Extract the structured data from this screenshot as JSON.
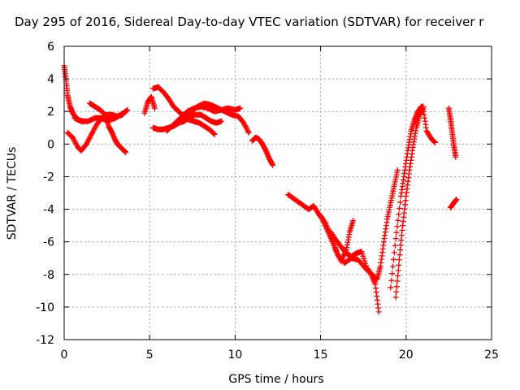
{
  "chart_data": {
    "type": "scatter",
    "title": "Day 295 of 2016, Sidereal Day-to-day VTEC variation (SDTVAR) for receiver r",
    "xlabel": "GPS time / hours",
    "ylabel": "SDTVAR / TECUs",
    "xlim": [
      0,
      25
    ],
    "ylim": [
      -12,
      6
    ],
    "xticks": [
      "0",
      "5",
      "10",
      "15",
      "20",
      "25"
    ],
    "yticks": [
      "-12",
      "-10",
      "-8",
      "-6",
      "-4",
      "-2",
      "0",
      "2",
      "4",
      "6"
    ],
    "grid": true,
    "legend": "none",
    "marker": "+",
    "color": "#ff0000",
    "series": [
      {
        "x": [
          0.0,
          0.1,
          0.2,
          0.35,
          0.5,
          0.7,
          0.9,
          1.1
        ],
        "y": [
          4.8,
          4.0,
          3.0,
          2.3,
          1.9,
          1.6,
          1.45,
          1.4
        ]
      },
      {
        "x": [
          0.2,
          0.5,
          0.8,
          1.0,
          1.3,
          1.6,
          1.9,
          2.2,
          2.5,
          2.8,
          3.1,
          3.4,
          3.7
        ],
        "y": [
          0.7,
          0.4,
          -0.2,
          -0.4,
          0.0,
          0.6,
          1.2,
          1.6,
          1.8,
          1.8,
          1.7,
          1.8,
          2.1
        ]
      },
      {
        "x": [
          0.6,
          1.0,
          1.4,
          1.8,
          2.1,
          2.4,
          2.7,
          3.0,
          3.3,
          3.6
        ],
        "y": [
          1.6,
          1.4,
          1.4,
          1.6,
          1.6,
          1.5,
          1.5,
          1.6,
          1.8,
          2.0
        ]
      },
      {
        "x": [
          1.5,
          1.8,
          2.1,
          2.4,
          2.6,
          2.8,
          3.0,
          3.2,
          3.4,
          3.6
        ],
        "y": [
          2.5,
          2.3,
          2.1,
          1.8,
          1.1,
          0.7,
          0.2,
          -0.1,
          -0.3,
          -0.5
        ]
      },
      {
        "x": [
          4.7,
          4.9,
          5.1,
          5.3
        ],
        "y": [
          1.9,
          2.6,
          2.9,
          2.2
        ]
      },
      {
        "x": [
          5.2,
          5.5,
          5.8,
          6.1,
          6.4,
          6.7,
          7.0,
          7.3,
          7.6,
          7.9,
          8.2,
          8.5,
          8.8
        ],
        "y": [
          3.4,
          3.5,
          3.2,
          2.8,
          2.3,
          2.0,
          1.7,
          1.5,
          1.4,
          1.3,
          1.1,
          0.9,
          0.6
        ]
      },
      {
        "x": [
          5.2,
          5.5,
          5.8,
          6.1,
          6.4,
          6.7,
          7.0,
          7.3,
          7.6,
          8.0,
          8.3,
          8.6,
          8.9,
          9.2
        ],
        "y": [
          1.0,
          0.9,
          0.9,
          1.0,
          1.1,
          1.3,
          1.4,
          1.6,
          1.8,
          1.8,
          1.6,
          1.4,
          1.3,
          1.4
        ]
      },
      {
        "x": [
          6.0,
          6.4,
          6.8,
          7.2,
          7.6,
          8.0,
          8.4,
          8.8,
          9.2,
          9.6,
          10.0,
          10.3
        ],
        "y": [
          0.8,
          1.2,
          1.6,
          2.0,
          2.2,
          2.3,
          2.2,
          2.0,
          2.1,
          2.2,
          2.1,
          2.2
        ]
      },
      {
        "x": [
          7.0,
          7.4,
          7.8,
          8.2,
          8.6,
          9.0,
          9.4,
          9.8,
          10.2,
          10.5,
          10.8
        ],
        "y": [
          1.8,
          2.0,
          2.3,
          2.5,
          2.4,
          2.2,
          2.0,
          1.8,
          1.7,
          1.3,
          0.7
        ]
      },
      {
        "x": [
          11.0,
          11.2,
          11.4,
          11.6,
          11.8,
          12.0,
          12.2
        ],
        "y": [
          0.2,
          0.4,
          0.3,
          0.0,
          -0.4,
          -0.9,
          -1.3
        ]
      },
      {
        "x": [
          13.1,
          13.5,
          13.9,
          14.3,
          14.6,
          14.9,
          15.1,
          15.4,
          15.7,
          16.0,
          16.4,
          16.8,
          17.2,
          17.6,
          17.9,
          18.2,
          18.4
        ],
        "y": [
          -3.1,
          -3.4,
          -3.7,
          -4.0,
          -3.8,
          -4.3,
          -4.6,
          -5.3,
          -6.0,
          -6.8,
          -7.3,
          -7.0,
          -7.1,
          -7.6,
          -7.9,
          -8.6,
          -10.3
        ]
      },
      {
        "x": [
          15.0,
          15.3,
          15.6,
          15.9,
          16.2,
          16.5,
          16.7,
          16.9
        ],
        "y": [
          -4.4,
          -4.9,
          -5.6,
          -6.5,
          -7.2,
          -6.5,
          -5.4,
          -4.7
        ]
      },
      {
        "x": [
          15.6,
          15.9,
          16.2,
          16.5,
          16.8,
          17.1,
          17.4,
          17.7,
          18.0,
          18.3,
          18.5,
          18.7,
          18.9,
          19.1,
          19.3,
          19.5
        ],
        "y": [
          -5.4,
          -5.9,
          -6.3,
          -6.7,
          -6.9,
          -6.7,
          -6.6,
          -7.6,
          -8.0,
          -8.3,
          -7.5,
          -6.0,
          -4.6,
          -3.6,
          -2.6,
          -1.6
        ]
      },
      {
        "x": [
          19.1,
          19.4,
          19.7,
          19.9,
          20.1,
          20.3,
          20.5,
          20.7,
          20.9,
          21.0
        ],
        "y": [
          -8.8,
          -5.8,
          -3.2,
          -1.8,
          -0.4,
          0.8,
          1.5,
          2.0,
          2.3,
          2.3
        ]
      },
      {
        "x": [
          19.4,
          19.6,
          19.8,
          20.0,
          20.2,
          20.4,
          20.6,
          20.8,
          21.0,
          21.2,
          21.5,
          21.7
        ],
        "y": [
          -9.4,
          -7.1,
          -5.0,
          -3.2,
          -1.6,
          -0.2,
          1.0,
          1.8,
          2.2,
          0.8,
          0.3,
          0.1
        ]
      },
      {
        "x": [
          22.5,
          22.6,
          22.7,
          22.8,
          22.9
        ],
        "y": [
          2.2,
          1.5,
          0.7,
          -0.1,
          -0.8
        ]
      },
      {
        "x": [
          22.6,
          22.8,
          22.95
        ],
        "y": [
          -3.9,
          -3.6,
          -3.4
        ]
      }
    ]
  }
}
